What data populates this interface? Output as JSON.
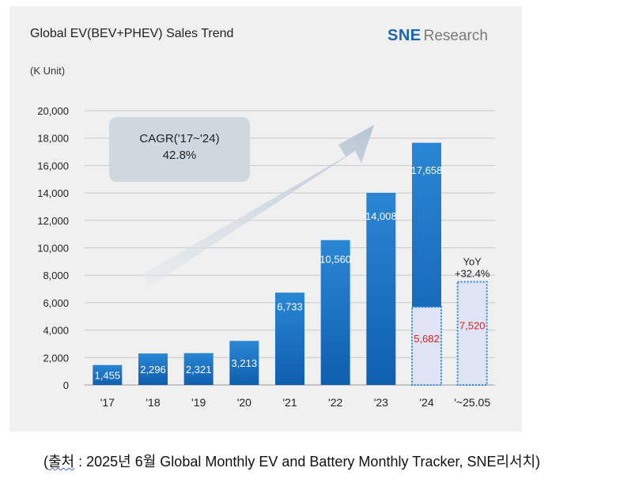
{
  "chart_data": {
    "type": "bar",
    "title": "Global EV(BEV+PHEV) Sales Trend",
    "unit_label": "(K Unit)",
    "categories": [
      "'17",
      "'18",
      "'19",
      "'20",
      "'21",
      "'22",
      "'23",
      "'24",
      "'~25.05"
    ],
    "values": [
      1455,
      2296,
      2321,
      3213,
      6733,
      10560,
      14008,
      17658,
      7520
    ],
    "value_labels": [
      "1,455",
      "2,296",
      "2,321",
      "3,213",
      "6,733",
      "10,560",
      "14,008",
      "17,658",
      "7,520"
    ],
    "partial_2024_value": 5682,
    "partial_2024_label": "5,682",
    "ylim": [
      0,
      20000
    ],
    "yticks": [
      0,
      2000,
      4000,
      6000,
      8000,
      10000,
      12000,
      14000,
      16000,
      18000,
      20000
    ],
    "ytick_labels": [
      "0",
      "2,000",
      "4,000",
      "6,000",
      "8,000",
      "10,000",
      "12,000",
      "14,000",
      "16,000",
      "18,000",
      "20,000"
    ],
    "grid": true,
    "yoy_label_line1": "YoY",
    "yoy_label_line2": "+32.4%",
    "cagr_label_line1": "CAGR('17~'24)",
    "cagr_label_line2": "42.8%",
    "colors": {
      "bar_top": "#2a86d4",
      "bar_bottom": "#0f5fae",
      "partial_fill": "#dfe4f5",
      "partial_border": "#2a86d4",
      "partial_text": "#e0201b",
      "grid": "#c9c9c9",
      "arrow": "#cbd6e0"
    }
  },
  "logo": {
    "sne": "SNE",
    "research": "Research"
  },
  "source": {
    "open": "(",
    "word": "출처",
    "rest": " : 2025년 6월 Global Monthly EV and Battery Monthly Tracker, SNE리서치)"
  }
}
